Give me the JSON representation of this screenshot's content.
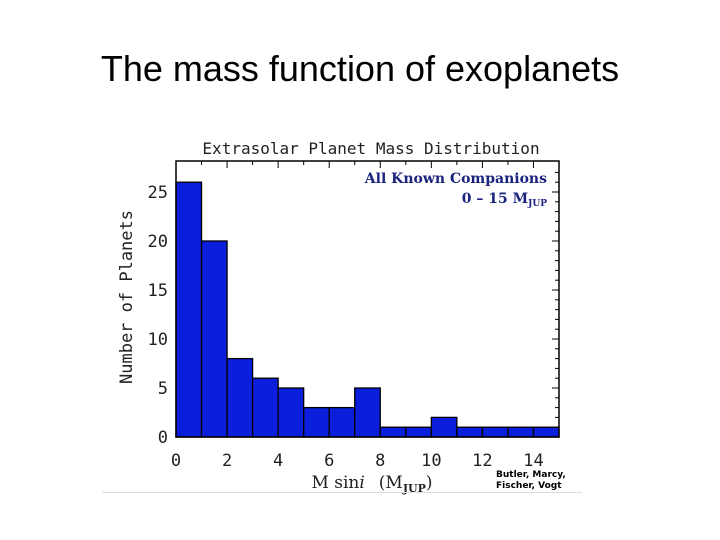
{
  "slide": {
    "title": "The mass function of exoplanets"
  },
  "chart_data": {
    "type": "bar",
    "title": "Extrasolar Planet Mass Distribution",
    "annotation": [
      "All Known Companions",
      "0 – 15 M",
      "JUP"
    ],
    "xlabel": "M sin",
    "xlabel_italic": "i",
    "xlabel_unit": "(M",
    "xlabel_unit_sub": "JUP",
    "xlabel_unit_close": ")",
    "ylabel": "Number of Planets",
    "bin_edges": [
      0,
      1,
      2,
      3,
      4,
      5,
      6,
      7,
      8,
      9,
      10,
      11,
      12,
      13,
      14,
      15
    ],
    "values": [
      26,
      20,
      8,
      6,
      5,
      3,
      3,
      5,
      1,
      1,
      2,
      1,
      1,
      1,
      1
    ],
    "xlim": [
      0,
      15
    ],
    "ylim": [
      0,
      28
    ],
    "xticks": [
      "0",
      "2",
      "4",
      "6",
      "8",
      "10",
      "12",
      "14"
    ],
    "yticks": [
      "0",
      "5",
      "10",
      "15",
      "20",
      "25"
    ],
    "bar_color": "#0a1edc",
    "annotation_color": "#1a237e",
    "grid": false,
    "credit": "Butler, Marcy, Fischer, Vogt"
  }
}
